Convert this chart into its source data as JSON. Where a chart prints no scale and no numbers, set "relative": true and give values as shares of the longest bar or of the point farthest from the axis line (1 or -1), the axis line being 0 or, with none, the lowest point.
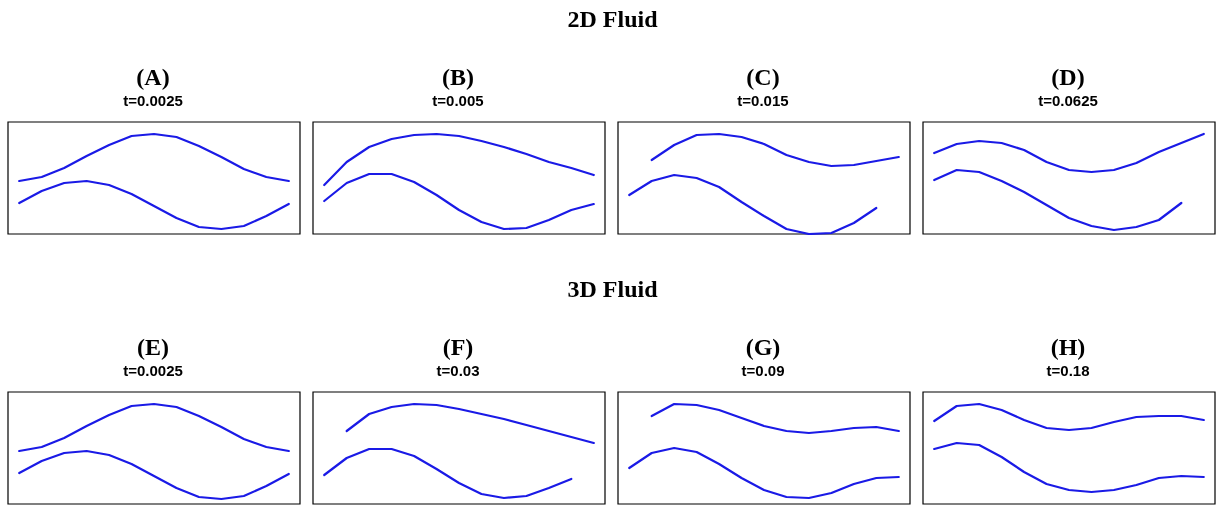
{
  "chart_data": [
    {
      "type": "other",
      "title": "2D Fluid"
    },
    {
      "type": "line",
      "title": "(A)",
      "subtitle": "t=0.0025",
      "relative": true,
      "categories": [
        null,
        null,
        null,
        null,
        null,
        null,
        null,
        null,
        null,
        null,
        null,
        null,
        null
      ],
      "series": [
        {
          "color": "#1a1ae6",
          "values": [
            0.53,
            0.57,
            0.66,
            0.78,
            0.89,
            0.98,
            1,
            0.97,
            0.88,
            0.77,
            0.65,
            0.57,
            0.53
          ]
        },
        {
          "color": "#1a1ae6",
          "values": [
            0.31,
            0.43,
            0.51,
            0.53,
            0.49,
            0.4,
            0.28,
            0.16,
            0.07,
            0.05,
            0.08,
            0.18,
            0.3
          ]
        }
      ]
    },
    {
      "type": "line",
      "title": "(B)",
      "subtitle": "t=0.005",
      "relative": true,
      "categories": [
        null,
        null,
        null,
        null,
        null,
        null,
        null,
        null,
        null,
        null,
        null,
        null,
        null
      ],
      "series": [
        {
          "color": "#1a1ae6",
          "values": [
            0.49,
            0.72,
            0.87,
            0.95,
            0.99,
            1,
            0.98,
            0.93,
            0.87,
            0.8,
            0.72,
            0.66,
            0.59
          ]
        },
        {
          "color": "#1a1ae6",
          "values": [
            0.33,
            0.51,
            0.6,
            0.6,
            0.52,
            0.39,
            0.24,
            0.12,
            0.05,
            0.06,
            0.14,
            0.24,
            0.3
          ]
        }
      ]
    },
    {
      "type": "line",
      "title": "(C)",
      "subtitle": "t=0.015",
      "relative": true,
      "categories": [
        null,
        null,
        null,
        null,
        null,
        null,
        null,
        null,
        null,
        null,
        null,
        null,
        null
      ],
      "series": [
        {
          "color": "#1a1ae6",
          "values": [
            null,
            0.74,
            0.89,
            0.99,
            1,
            0.97,
            0.9,
            0.79,
            0.72,
            0.68,
            0.69,
            0.73,
            0.77
          ]
        },
        {
          "color": "#1a1ae6",
          "values": [
            0.39,
            0.53,
            0.59,
            0.56,
            0.47,
            0.32,
            0.18,
            0.05,
            0,
            0.01,
            0.11,
            0.26,
            null
          ]
        }
      ]
    },
    {
      "type": "line",
      "title": "(D)",
      "subtitle": "t=0.0625",
      "relative": true,
      "categories": [
        null,
        null,
        null,
        null,
        null,
        null,
        null,
        null,
        null,
        null,
        null,
        null,
        null
      ],
      "series": [
        {
          "color": "#1a1ae6",
          "values": [
            0.81,
            0.9,
            0.93,
            0.91,
            0.84,
            0.72,
            0.64,
            0.62,
            0.64,
            0.71,
            0.82,
            0.91,
            1
          ]
        },
        {
          "color": "#1a1ae6",
          "values": [
            0.54,
            0.64,
            0.62,
            0.53,
            0.42,
            0.29,
            0.16,
            0.08,
            0.04,
            0.07,
            0.14,
            0.31,
            null
          ]
        }
      ]
    },
    {
      "type": "other",
      "title": "3D Fluid"
    },
    {
      "type": "line",
      "title": "(E)",
      "subtitle": "t=0.0025",
      "relative": true,
      "categories": [
        null,
        null,
        null,
        null,
        null,
        null,
        null,
        null,
        null,
        null,
        null,
        null,
        null
      ],
      "series": [
        {
          "color": "#1a1ae6",
          "values": [
            0.53,
            0.57,
            0.66,
            0.78,
            0.89,
            0.98,
            1,
            0.97,
            0.88,
            0.77,
            0.65,
            0.57,
            0.53
          ]
        },
        {
          "color": "#1a1ae6",
          "values": [
            0.31,
            0.43,
            0.51,
            0.53,
            0.49,
            0.4,
            0.28,
            0.16,
            0.07,
            0.05,
            0.08,
            0.18,
            0.3
          ]
        }
      ]
    },
    {
      "type": "line",
      "title": "(F)",
      "subtitle": "t=0.03",
      "relative": true,
      "categories": [
        null,
        null,
        null,
        null,
        null,
        null,
        null,
        null,
        null,
        null,
        null,
        null,
        null
      ],
      "series": [
        {
          "color": "#1a1ae6",
          "values": [
            null,
            0.73,
            0.9,
            0.97,
            1,
            0.99,
            0.95,
            0.9,
            0.85,
            0.79,
            0.73,
            0.67,
            0.61
          ]
        },
        {
          "color": "#1a1ae6",
          "values": [
            0.29,
            0.46,
            0.55,
            0.55,
            0.48,
            0.35,
            0.21,
            0.1,
            0.06,
            0.08,
            0.16,
            0.25,
            null
          ]
        }
      ]
    },
    {
      "type": "line",
      "title": "(G)",
      "subtitle": "t=0.09",
      "relative": true,
      "categories": [
        null,
        null,
        null,
        null,
        null,
        null,
        null,
        null,
        null,
        null,
        null,
        null,
        null
      ],
      "series": [
        {
          "color": "#1a1ae6",
          "values": [
            null,
            0.88,
            1,
            0.99,
            0.94,
            0.86,
            0.78,
            0.73,
            0.71,
            0.73,
            0.76,
            0.77,
            0.73
          ]
        },
        {
          "color": "#1a1ae6",
          "values": [
            0.36,
            0.51,
            0.56,
            0.52,
            0.4,
            0.26,
            0.14,
            0.07,
            0.06,
            0.11,
            0.2,
            0.26,
            0.27
          ]
        }
      ]
    },
    {
      "type": "line",
      "title": "(H)",
      "subtitle": "t=0.18",
      "relative": true,
      "categories": [
        null,
        null,
        null,
        null,
        null,
        null,
        null,
        null,
        null,
        null,
        null,
        null,
        null
      ],
      "series": [
        {
          "color": "#1a1ae6",
          "values": [
            0.83,
            0.98,
            1,
            0.94,
            0.84,
            0.76,
            0.74,
            0.76,
            0.82,
            0.87,
            0.88,
            0.88,
            0.84
          ]
        },
        {
          "color": "#1a1ae6",
          "values": [
            0.55,
            0.61,
            0.59,
            0.47,
            0.32,
            0.2,
            0.14,
            0.12,
            0.14,
            0.19,
            0.26,
            0.28,
            0.27
          ]
        }
      ]
    }
  ]
}
